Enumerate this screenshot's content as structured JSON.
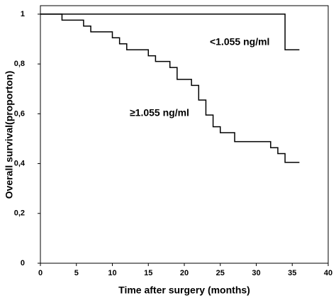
{
  "chart_data": {
    "type": "step",
    "xlabel": "Time after surgery (months)",
    "ylabel": "Overall survival(proporton)",
    "xlim": [
      0,
      40
    ],
    "xticks": [
      0,
      5,
      10,
      15,
      20,
      25,
      30,
      35,
      40
    ],
    "ylim": [
      0,
      1.034
    ],
    "yticks": [
      0,
      {
        "value": 0.2,
        "label": "0,2"
      },
      {
        "value": 0.4,
        "label": "0,4"
      },
      {
        "value": 0.6,
        "label": "0,6"
      },
      {
        "value": 0.8,
        "label": "0,8"
      },
      1
    ],
    "series": [
      {
        "name": "<1.055 ng/ml",
        "color": "#000000",
        "x": [
          0,
          34,
          36
        ],
        "values": [
          1,
          0.857,
          0.857
        ]
      },
      {
        "name": "≥1.055 ng/ml",
        "color": "#000000",
        "x": [
          0,
          3,
          6,
          7,
          10,
          11,
          12,
          15,
          16,
          18,
          19,
          21,
          22,
          23,
          24,
          25,
          27,
          32,
          33,
          34,
          36
        ],
        "values": [
          1,
          0.976,
          0.952,
          0.929,
          0.905,
          0.881,
          0.857,
          0.833,
          0.81,
          0.786,
          0.738,
          0.714,
          0.655,
          0.595,
          0.548,
          0.524,
          0.488,
          0.464,
          0.44,
          0.405,
          0.405
        ]
      }
    ]
  }
}
